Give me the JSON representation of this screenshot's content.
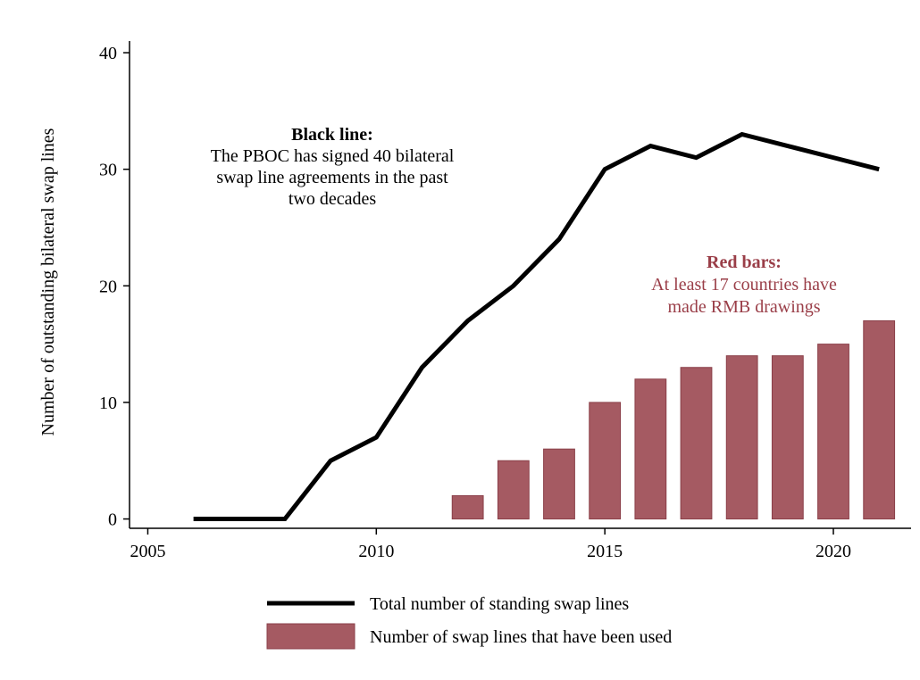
{
  "chart_data": {
    "type": "bar+line",
    "title": "",
    "xlabel": "",
    "ylabel": "Number of outstanding bilateral swap lines",
    "xlim": [
      2004.6,
      2021.7
    ],
    "ylim": [
      -0.8,
      41
    ],
    "x_ticks": [
      2005,
      2010,
      2015,
      2020
    ],
    "y_ticks": [
      0,
      10,
      20,
      30,
      40
    ],
    "grid": false,
    "legend_position": "bottom",
    "colors": {
      "line": "#000000",
      "bars": "#a55a62",
      "bar_edge": "#8a3f48",
      "red_text": "#9a3e48"
    },
    "series": [
      {
        "name": "Total number of standing swap lines",
        "kind": "line",
        "x": [
          2006,
          2007,
          2008,
          2009,
          2010,
          2011,
          2012,
          2013,
          2014,
          2015,
          2016,
          2017,
          2018,
          2019,
          2020,
          2021
        ],
        "values": [
          0,
          0,
          0,
          5,
          7,
          13,
          17,
          20,
          24,
          30,
          32,
          31,
          33,
          32,
          31,
          30
        ]
      },
      {
        "name": "Number of swap lines that have been used",
        "kind": "bar",
        "x": [
          2012,
          2013,
          2014,
          2015,
          2016,
          2017,
          2018,
          2019,
          2020,
          2021
        ],
        "values": [
          2,
          5,
          6,
          10,
          12,
          13,
          14,
          14,
          15,
          17
        ]
      }
    ],
    "annotations": {
      "black": {
        "heading": "Black line:",
        "lines": [
          "The PBOC has signed 40 bilateral",
          "swap line agreements in the past",
          "two decades"
        ]
      },
      "red": {
        "heading": "Red bars:",
        "lines": [
          "At least 17 countries have",
          "made RMB drawings"
        ]
      }
    }
  }
}
